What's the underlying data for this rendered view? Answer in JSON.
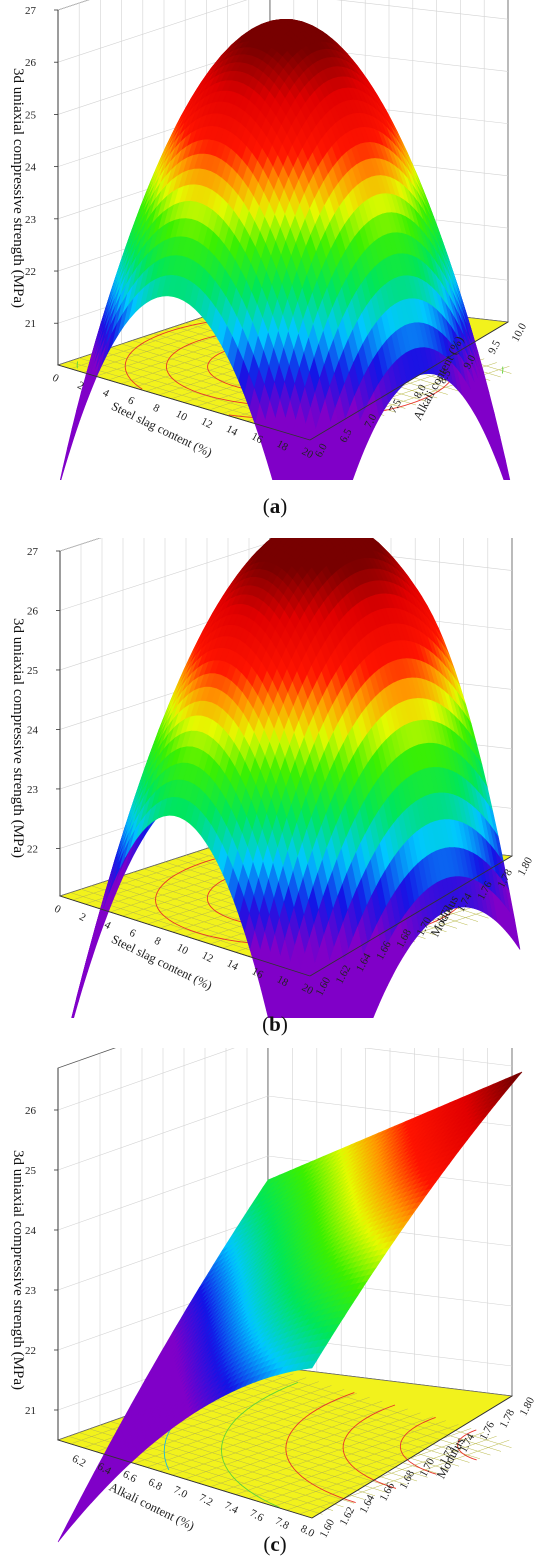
{
  "chart_data": [
    {
      "panel": "a",
      "type": "surface3d",
      "zlabel": "3d uniaxial compressive strength (MPa)",
      "xlabel": "Steel slag content (%)",
      "ylabel": "Alkali content (%)",
      "x_ticks": [
        "0",
        "2",
        "4",
        "6",
        "8",
        "10",
        "12",
        "14",
        "16",
        "18",
        "20"
      ],
      "y_ticks": [
        "6.0",
        "6.5",
        "7.0",
        "7.5",
        "8.0",
        "8.5",
        "9.0",
        "9.5",
        "10.0"
      ],
      "z_ticks": [
        "21",
        "22",
        "23",
        "24",
        "25",
        "26",
        "27"
      ],
      "xlim": [
        0,
        20
      ],
      "ylim": [
        6.0,
        10.0
      ],
      "zlim": [
        20.2,
        27
      ],
      "surface_peak": {
        "x": 10,
        "y": 8.0,
        "z": 26.3
      },
      "surface_corners": {
        "x0_y6": 21.6,
        "x0_y10": 23.1,
        "x20_y6": 20.3,
        "x20_y10": 20.8
      }
    },
    {
      "panel": "b",
      "type": "surface3d",
      "zlabel": "3d uniaxial compressive strength (MPa)",
      "xlabel": "Steel slag content (%)",
      "ylabel": "Modulus",
      "x_ticks": [
        "0",
        "2",
        "4",
        "6",
        "8",
        "10",
        "12",
        "14",
        "16",
        "18",
        "20"
      ],
      "y_ticks": [
        "1.60",
        "1.62",
        "1.64",
        "1.66",
        "1.68",
        "1.70",
        "1.72",
        "1.74",
        "1.76",
        "1.78",
        "1.80"
      ],
      "z_ticks": [
        "22",
        "23",
        "24",
        "25",
        "26",
        "27"
      ],
      "xlim": [
        0,
        20
      ],
      "ylim": [
        1.6,
        1.8
      ],
      "zlim": [
        21.2,
        27
      ],
      "surface_peak": {
        "x": 10,
        "y": 1.72,
        "z": 26.9
      },
      "surface_corners": {
        "x0_y160": 22.6,
        "x0_y180": 23.2,
        "x20_y160": 21.3,
        "x20_y180": 22.8
      }
    },
    {
      "panel": "c",
      "type": "surface3d",
      "zlabel": "3d uniaxial compressive strength (MPa)",
      "xlabel": "Alkali content (%)",
      "ylabel": "Modulus",
      "x_ticks": [
        "6.2",
        "6.4",
        "6.6",
        "6.8",
        "7.0",
        "7.2",
        "7.4",
        "7.6",
        "7.8",
        "8.0"
      ],
      "y_ticks": [
        "1.60",
        "1.62",
        "1.64",
        "1.66",
        "1.68",
        "1.70",
        "1.72",
        "1.74",
        "1.76",
        "1.78",
        "1.80"
      ],
      "z_ticks": [
        "21",
        "22",
        "23",
        "24",
        "25",
        "26"
      ],
      "xlim": [
        6.0,
        8.0
      ],
      "ylim": [
        1.6,
        1.8
      ],
      "zlim": [
        20.5,
        26.7
      ],
      "surface_peak": {
        "x": 8.0,
        "y": 1.8,
        "z": 26.5
      },
      "surface_corners": {
        "x60_y160": 21.8,
        "x60_y180": 23.4,
        "x80_y160": 23.6,
        "x80_y180": 26.5
      }
    }
  ],
  "captions": [
    {
      "open": "(",
      "letter": "a",
      "close": ")"
    },
    {
      "open": "(",
      "letter": "b",
      "close": ")"
    },
    {
      "open": "(",
      "letter": "c",
      "close": ")"
    }
  ]
}
